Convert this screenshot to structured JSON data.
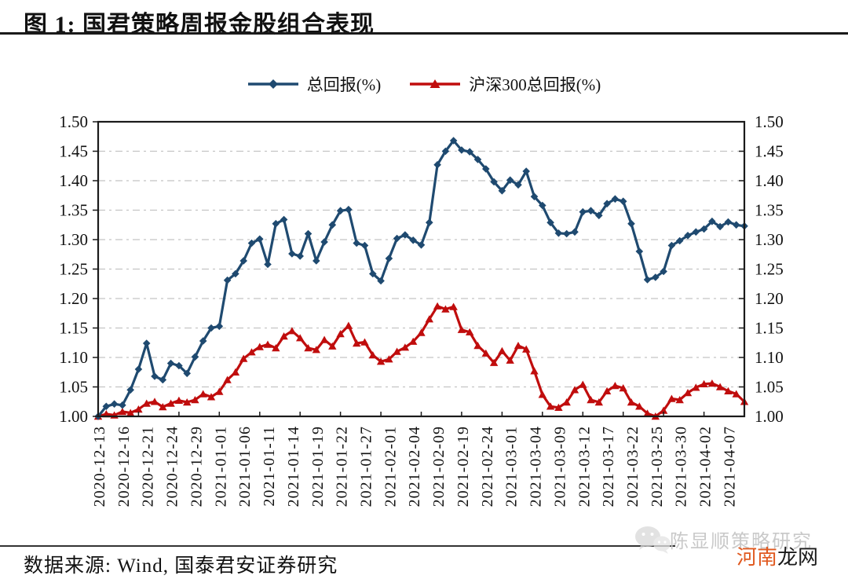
{
  "figure": {
    "title": "图 1: 国君策略周报金股组合表现",
    "source_note": "数据来源: Wind, 国泰君安证券研究"
  },
  "watermarks": {
    "wechat_icon": "wechat-chat-bubbles-icon",
    "account_name": "陈显顺策略研究",
    "account_color": "#c9c9c9",
    "site_name_part1": "河南",
    "site_name_part2": "龙网",
    "site_part1_color": "#e0591f",
    "site_part2_color": "#1a1a1a"
  },
  "chart_data": {
    "type": "line",
    "title": "",
    "legend_position": "top-center",
    "grid": "dashed-horizontal",
    "frame": "full-box",
    "ylim": [
      1.0,
      1.5
    ],
    "y_tick_step": 0.05,
    "y_tick_labels": [
      "1.00",
      "1.05",
      "1.10",
      "1.15",
      "1.20",
      "1.25",
      "1.30",
      "1.35",
      "1.40",
      "1.45",
      "1.50"
    ],
    "y_axis_sides": "both",
    "x_tick_interval": 3,
    "x_minor_tick_every": 5,
    "x_tick_labels": [
      "2020-12-13",
      "2020-12-16",
      "2020-12-21",
      "2020-12-24",
      "2020-12-29",
      "2021-01-01",
      "2021-01-06",
      "2021-01-11",
      "2021-01-14",
      "2021-01-19",
      "2021-01-22",
      "2021-01-27",
      "2021-02-01",
      "2021-02-04",
      "2021-02-09",
      "2021-02-19",
      "2021-02-24",
      "2021-03-01",
      "2021-03-04",
      "2021-03-09",
      "2021-03-12",
      "2021-03-17",
      "2021-03-22",
      "2021-03-25",
      "2021-03-30",
      "2021-04-02",
      "2021-04-07"
    ],
    "series": [
      {
        "name": "总回报(%)",
        "color": "#1f4a70",
        "marker": "diamond",
        "values": [
          1.0,
          1.017,
          1.021,
          1.019,
          1.045,
          1.08,
          1.124,
          1.068,
          1.062,
          1.09,
          1.086,
          1.073,
          1.101,
          1.128,
          1.15,
          1.153,
          1.231,
          1.242,
          1.264,
          1.294,
          1.301,
          1.258,
          1.327,
          1.334,
          1.276,
          1.272,
          1.31,
          1.264,
          1.296,
          1.325,
          1.349,
          1.351,
          1.294,
          1.29,
          1.242,
          1.23,
          1.268,
          1.302,
          1.308,
          1.299,
          1.291,
          1.329,
          1.427,
          1.45,
          1.468,
          1.452,
          1.449,
          1.436,
          1.42,
          1.398,
          1.383,
          1.401,
          1.393,
          1.416,
          1.373,
          1.358,
          1.329,
          1.311,
          1.31,
          1.313,
          1.347,
          1.349,
          1.341,
          1.361,
          1.369,
          1.365,
          1.327,
          1.28,
          1.232,
          1.236,
          1.246,
          1.29,
          1.298,
          1.307,
          1.313,
          1.318,
          1.331,
          1.322,
          1.33,
          1.325,
          1.323
        ]
      },
      {
        "name": "沪深300总回报(%)",
        "color": "#c00d0d",
        "marker": "triangle",
        "values": [
          1.0,
          1.004,
          1.002,
          1.008,
          1.006,
          1.012,
          1.022,
          1.025,
          1.016,
          1.022,
          1.027,
          1.024,
          1.028,
          1.038,
          1.033,
          1.042,
          1.062,
          1.075,
          1.098,
          1.109,
          1.118,
          1.122,
          1.116,
          1.136,
          1.145,
          1.133,
          1.116,
          1.113,
          1.13,
          1.119,
          1.14,
          1.154,
          1.124,
          1.126,
          1.104,
          1.093,
          1.097,
          1.11,
          1.117,
          1.127,
          1.142,
          1.165,
          1.187,
          1.182,
          1.186,
          1.147,
          1.143,
          1.12,
          1.107,
          1.091,
          1.111,
          1.095,
          1.12,
          1.114,
          1.077,
          1.037,
          1.017,
          1.015,
          1.024,
          1.045,
          1.054,
          1.028,
          1.024,
          1.043,
          1.052,
          1.048,
          1.024,
          1.017,
          1.005,
          1.0,
          1.01,
          1.03,
          1.028,
          1.04,
          1.049,
          1.055,
          1.056,
          1.05,
          1.043,
          1.038,
          1.025
        ]
      }
    ]
  }
}
